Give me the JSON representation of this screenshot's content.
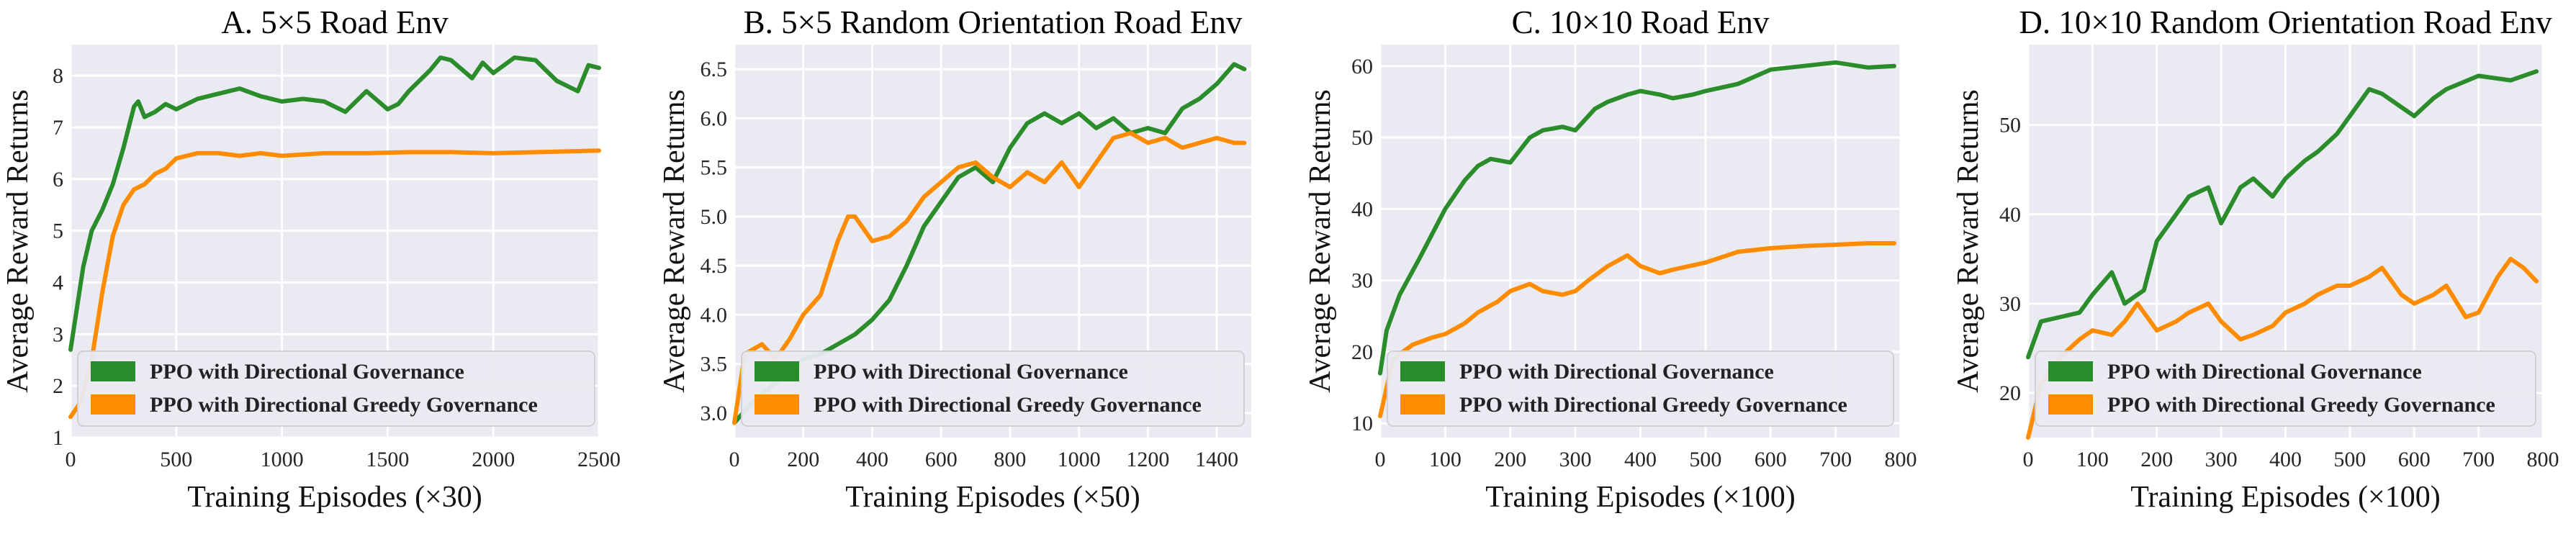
{
  "colors": {
    "green": "#2a8c2a",
    "orange": "#ff8c00"
  },
  "chart_data": [
    {
      "type": "line",
      "title": "A. 5×5 Road Env",
      "xlabel": "Training Episodes (×30)",
      "ylabel": "Average Reward Returns",
      "xlim": [
        0,
        2500
      ],
      "ylim": [
        1,
        8.6
      ],
      "xticks": [
        0,
        500,
        1000,
        1500,
        2000,
        2500
      ],
      "yticks": [
        1,
        2,
        3,
        4,
        5,
        6,
        7,
        8
      ],
      "legend": "lower-left",
      "grid": true,
      "series": [
        {
          "name": "PPO with Directional Governance",
          "color": "#2a8c2a",
          "x": [
            0,
            30,
            60,
            100,
            150,
            200,
            250,
            300,
            320,
            350,
            400,
            450,
            500,
            600,
            700,
            800,
            900,
            1000,
            1100,
            1200,
            1300,
            1400,
            1500,
            1550,
            1600,
            1700,
            1750,
            1800,
            1900,
            1950,
            2000,
            2100,
            2200,
            2300,
            2400,
            2450,
            2500
          ],
          "y": [
            2.7,
            3.5,
            4.3,
            5.0,
            5.4,
            5.9,
            6.6,
            7.4,
            7.5,
            7.2,
            7.3,
            7.45,
            7.35,
            7.55,
            7.65,
            7.75,
            7.6,
            7.5,
            7.55,
            7.5,
            7.3,
            7.7,
            7.35,
            7.45,
            7.7,
            8.1,
            8.35,
            8.3,
            7.95,
            8.25,
            8.05,
            8.35,
            8.3,
            7.9,
            7.7,
            8.2,
            8.15
          ]
        },
        {
          "name": "PPO with Directional Greedy Governance",
          "color": "#ff8c00",
          "x": [
            0,
            50,
            100,
            150,
            200,
            250,
            300,
            350,
            400,
            450,
            500,
            600,
            700,
            800,
            900,
            1000,
            1200,
            1400,
            1600,
            1800,
            2000,
            2200,
            2500
          ],
          "y": [
            1.4,
            1.7,
            2.5,
            3.8,
            4.9,
            5.5,
            5.8,
            5.9,
            6.1,
            6.2,
            6.4,
            6.5,
            6.5,
            6.45,
            6.5,
            6.45,
            6.5,
            6.5,
            6.52,
            6.52,
            6.5,
            6.52,
            6.55
          ]
        }
      ]
    },
    {
      "type": "line",
      "title": "B. 5×5 Random Orientation Road Env",
      "xlabel": "Training Episodes (×50)",
      "ylabel": "Average Reward Returns",
      "xlim": [
        0,
        1500
      ],
      "ylim": [
        2.75,
        6.75
      ],
      "xticks": [
        0,
        200,
        400,
        600,
        800,
        1000,
        1200,
        1400
      ],
      "yticks": [
        3.0,
        3.5,
        4.0,
        4.5,
        5.0,
        5.5,
        6.0,
        6.5
      ],
      "legend": "lower-left",
      "grid": true,
      "series": [
        {
          "name": "PPO with Directional Governance",
          "color": "#2a8c2a",
          "x": [
            0,
            50,
            100,
            150,
            200,
            250,
            300,
            350,
            400,
            450,
            500,
            550,
            600,
            650,
            700,
            750,
            800,
            850,
            900,
            950,
            1000,
            1050,
            1100,
            1150,
            1200,
            1250,
            1300,
            1350,
            1400,
            1450,
            1480
          ],
          "y": [
            2.9,
            3.1,
            3.25,
            3.4,
            3.55,
            3.6,
            3.7,
            3.8,
            3.95,
            4.15,
            4.5,
            4.9,
            5.15,
            5.4,
            5.5,
            5.35,
            5.7,
            5.95,
            6.05,
            5.95,
            6.05,
            5.9,
            6.0,
            5.85,
            5.9,
            5.85,
            6.1,
            6.2,
            6.35,
            6.55,
            6.5
          ]
        },
        {
          "name": "PPO with Directional Greedy Governance",
          "color": "#ff8c00",
          "x": [
            0,
            30,
            80,
            120,
            160,
            200,
            250,
            300,
            330,
            350,
            400,
            450,
            500,
            550,
            600,
            650,
            700,
            750,
            800,
            850,
            900,
            950,
            1000,
            1050,
            1100,
            1150,
            1200,
            1250,
            1300,
            1350,
            1400,
            1450,
            1480
          ],
          "y": [
            2.9,
            3.6,
            3.7,
            3.55,
            3.75,
            4.0,
            4.2,
            4.75,
            5.0,
            5.0,
            4.75,
            4.8,
            4.95,
            5.2,
            5.35,
            5.5,
            5.55,
            5.4,
            5.3,
            5.45,
            5.35,
            5.55,
            5.3,
            5.55,
            5.8,
            5.85,
            5.75,
            5.8,
            5.7,
            5.75,
            5.8,
            5.75,
            5.75
          ]
        }
      ]
    },
    {
      "type": "line",
      "title": "C. 10×10 Road Env",
      "xlabel": "Training Episodes (×100)",
      "ylabel": "Average Reward Returns",
      "xlim": [
        0,
        800
      ],
      "ylim": [
        8,
        63
      ],
      "xticks": [
        0,
        100,
        200,
        300,
        400,
        500,
        600,
        700,
        800
      ],
      "yticks": [
        10,
        20,
        30,
        40,
        50,
        60
      ],
      "legend": "lower-left",
      "grid": true,
      "series": [
        {
          "name": "PPO with Directional Governance",
          "color": "#2a8c2a",
          "x": [
            0,
            10,
            30,
            60,
            100,
            130,
            150,
            170,
            200,
            230,
            250,
            280,
            300,
            330,
            350,
            380,
            400,
            430,
            450,
            480,
            500,
            550,
            600,
            650,
            700,
            750,
            790
          ],
          "y": [
            17,
            23,
            28,
            33,
            40,
            44,
            46,
            47,
            46.5,
            50,
            51,
            51.5,
            51,
            54,
            55,
            56,
            56.5,
            56,
            55.5,
            56,
            56.5,
            57.5,
            59.5,
            60,
            60.5,
            59.8,
            60
          ]
        },
        {
          "name": "PPO with Directional Greedy Governance",
          "color": "#ff8c00",
          "x": [
            0,
            20,
            50,
            80,
            100,
            130,
            150,
            180,
            200,
            230,
            250,
            280,
            300,
            320,
            350,
            380,
            400,
            430,
            450,
            500,
            550,
            600,
            650,
            700,
            750,
            790
          ],
          "y": [
            11,
            19,
            21,
            22,
            22.5,
            24,
            25.5,
            27,
            28.5,
            29.5,
            28.5,
            28,
            28.5,
            30,
            32,
            33.5,
            32,
            31,
            31.5,
            32.5,
            34,
            34.5,
            34.8,
            35,
            35.2,
            35.2
          ]
        }
      ]
    },
    {
      "type": "line",
      "title": "D. 10×10 Random Orientation Road Env",
      "xlabel": "Training Episodes (×100)",
      "ylabel": "Average Reward Returns",
      "xlim": [
        0,
        800
      ],
      "ylim": [
        15,
        59
      ],
      "xticks": [
        0,
        100,
        200,
        300,
        400,
        500,
        600,
        700,
        800
      ],
      "yticks": [
        20,
        30,
        40,
        50
      ],
      "legend": "lower-left",
      "grid": true,
      "series": [
        {
          "name": "PPO with Directional Governance",
          "color": "#2a8c2a",
          "x": [
            0,
            20,
            50,
            80,
            100,
            130,
            150,
            180,
            200,
            230,
            250,
            280,
            300,
            330,
            350,
            380,
            400,
            430,
            450,
            480,
            500,
            530,
            550,
            580,
            600,
            630,
            650,
            700,
            750,
            790
          ],
          "y": [
            24,
            28,
            28.5,
            29,
            31,
            33.5,
            30,
            31.5,
            37,
            40,
            42,
            43,
            39,
            43,
            44,
            42,
            44,
            46,
            47,
            49,
            51,
            54,
            53.5,
            52,
            51,
            53,
            54,
            55.5,
            55,
            56
          ]
        },
        {
          "name": "PPO with Directional Greedy Governance",
          "color": "#ff8c00",
          "x": [
            0,
            20,
            50,
            80,
            100,
            130,
            150,
            170,
            200,
            230,
            250,
            280,
            300,
            330,
            350,
            380,
            400,
            430,
            450,
            480,
            500,
            530,
            550,
            580,
            600,
            630,
            650,
            680,
            700,
            730,
            750,
            770,
            790
          ],
          "y": [
            15,
            21,
            24,
            26,
            27,
            26.5,
            28,
            30,
            27,
            28,
            29,
            30,
            28,
            26,
            26.5,
            27.5,
            29,
            30,
            31,
            32,
            32,
            33,
            34,
            31,
            30,
            31,
            32,
            28.5,
            29,
            33,
            35,
            34,
            32.5
          ]
        }
      ]
    }
  ]
}
